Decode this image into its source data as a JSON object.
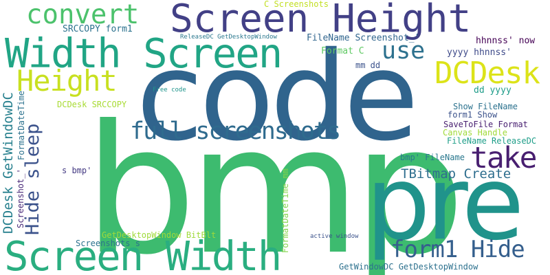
{
  "words": [
    {
      "text": "bmp",
      "color": "#3dbb6f"
    },
    {
      "text": "code",
      "color": "#30648d"
    },
    {
      "text": "pre",
      "color": "#20938b"
    },
    {
      "text": "Screen Height",
      "color": "#424086"
    },
    {
      "text": "Width Screen",
      "color": "#21a585"
    },
    {
      "text": "Screen Width",
      "color": "#2aae80"
    },
    {
      "text": "convert",
      "color": "#4cc26c"
    },
    {
      "text": "DCDesk",
      "color": "#dce319"
    },
    {
      "text": "Height",
      "color": "#c8e020"
    },
    {
      "text": "take",
      "color": "#481f70"
    },
    {
      "text": "use",
      "color": "#2d718e"
    },
    {
      "text": "full screenshots",
      "color": "#2f6b8e"
    },
    {
      "text": "form1 Hide",
      "color": "#355f8d"
    },
    {
      "text": "Hide sleep",
      "color": "#3b528b"
    },
    {
      "text": "TBitmap Create",
      "color": "#2e6e8e"
    },
    {
      "text": "DCDesk GetWindowDC",
      "color": "#27808e"
    },
    {
      "text": "C Screenshots",
      "color": "#c2df23"
    },
    {
      "text": "SRCCOPY form1",
      "color": "#2c728e"
    },
    {
      "text": "ReleaseDC GetDesktopWindow",
      "color": "#2a788e"
    },
    {
      "text": "FileName Screenshot_'",
      "color": "#31668e"
    },
    {
      "text": "hhnnss' now",
      "color": "#440154"
    },
    {
      "text": "Format C",
      "color": "#5ec962"
    },
    {
      "text": "yyyy hhnnss'",
      "color": "#3e4a89"
    },
    {
      "text": "mm dd",
      "color": "#3b528b"
    },
    {
      "text": "dd yyyy",
      "color": "#1e9c89"
    },
    {
      "text": "Free code",
      "color": "#1f948c"
    },
    {
      "text": "DCDesk SRCCOPY",
      "color": "#a8db34"
    },
    {
      "text": "FormatDateTime",
      "color": "#2c728e"
    },
    {
      "text": "Show FileName",
      "color": "#2c728e"
    },
    {
      "text": "form1 Show",
      "color": "#3b528b"
    },
    {
      "text": "SaveToFile Format",
      "color": "#481f70"
    },
    {
      "text": "Canvas Handle",
      "color": "#a0da39"
    },
    {
      "text": "FileName ReleaseDC",
      "color": "#1f9e89"
    },
    {
      "text": "bmp' FileName",
      "color": "#2a788e"
    },
    {
      "text": "s bmp'",
      "color": "#443a83"
    },
    {
      "text": "FormatDateTime mm",
      "color": "#84d44b"
    },
    {
      "text": "Screenshot_'",
      "color": "#482878"
    },
    {
      "text": "GetDesktopWindow BitBlt",
      "color": "#9fda3a"
    },
    {
      "text": "Screenshots s",
      "color": "#2c728e"
    },
    {
      "text": "active window",
      "color": "#3b528b"
    },
    {
      "text": "GetWindowDC GetDesktopWindow",
      "color": "#2d718e"
    }
  ]
}
